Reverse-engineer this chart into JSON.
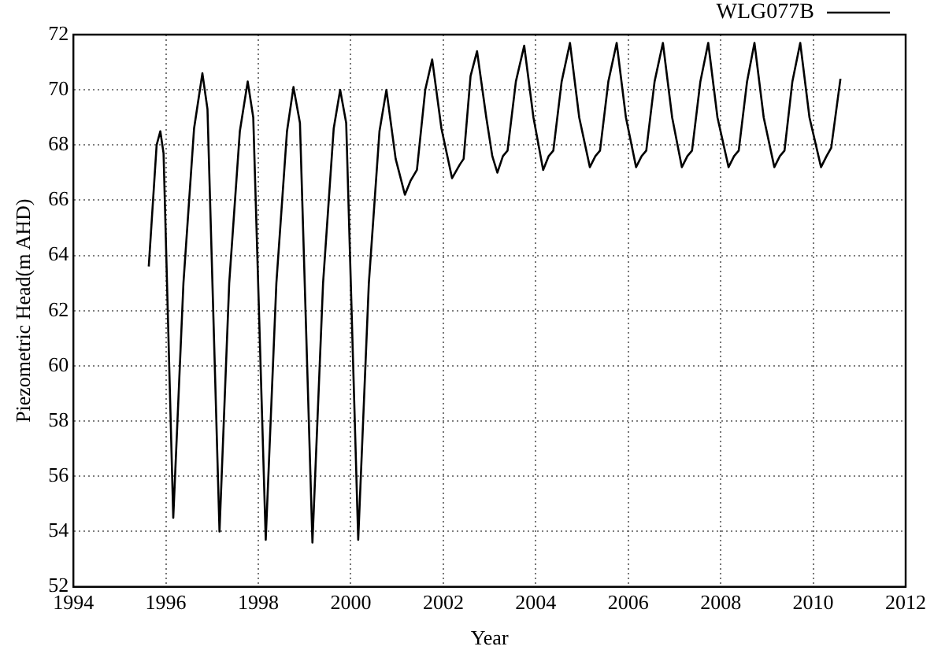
{
  "chart_data": {
    "type": "line",
    "xlabel": "Year",
    "ylabel": "Piezometric Head(m AHD)",
    "xlim": [
      1994,
      2012
    ],
    "xticks": [
      1994,
      1996,
      1998,
      2000,
      2002,
      2004,
      2006,
      2008,
      2010,
      2012
    ],
    "ylim": [
      52,
      72
    ],
    "yticks": [
      52,
      54,
      56,
      58,
      60,
      62,
      64,
      66,
      68,
      70,
      72
    ],
    "grid": true,
    "legend": "top right",
    "marker": "none",
    "line_style": "solid",
    "series": [
      {
        "name": "WLG077B",
        "color": "#000000",
        "x": [
          1995.63,
          1995.8,
          1995.88,
          1995.95,
          1996.16,
          1996.38,
          1996.61,
          1996.79,
          1996.9,
          1997.16,
          1997.37,
          1997.6,
          1997.77,
          1997.89,
          1998.16,
          1998.39,
          1998.62,
          1998.76,
          1998.9,
          1999.17,
          1999.4,
          1999.63,
          1999.77,
          1999.9,
          2000.16,
          2000.39,
          2000.62,
          2000.77,
          2000.97,
          2001.17,
          2001.29,
          2001.43,
          2001.61,
          2001.76,
          2001.96,
          2002.19,
          2002.36,
          2002.44,
          2002.59,
          2002.73,
          2002.93,
          2003.06,
          2003.17,
          2003.29,
          2003.39,
          2003.57,
          2003.75,
          2003.95,
          2004.16,
          2004.28,
          2004.38,
          2004.56,
          2004.74,
          2004.94,
          2005.17,
          2005.29,
          2005.39,
          2005.57,
          2005.75,
          2005.95,
          2006.17,
          2006.29,
          2006.39,
          2006.57,
          2006.75,
          2006.95,
          2007.16,
          2007.28,
          2007.38,
          2007.56,
          2007.73,
          2007.93,
          2008.17,
          2008.29,
          2008.39,
          2008.57,
          2008.73,
          2008.93,
          2009.16,
          2009.28,
          2009.38,
          2009.55,
          2009.72,
          2009.92,
          2010.17,
          2010.29,
          2010.39,
          2010.59
        ],
        "values": [
          63.6,
          68.0,
          68.5,
          67.7,
          54.5,
          63.0,
          68.6,
          70.6,
          69.3,
          54.0,
          63.0,
          68.5,
          70.3,
          69.0,
          53.7,
          63.0,
          68.5,
          70.1,
          68.8,
          53.6,
          63.0,
          68.6,
          70.0,
          68.8,
          53.7,
          63.0,
          68.5,
          70.0,
          67.5,
          66.2,
          66.7,
          67.1,
          70.0,
          71.1,
          68.6,
          66.8,
          67.3,
          67.5,
          70.5,
          71.4,
          69.0,
          67.6,
          67.0,
          67.6,
          67.8,
          70.3,
          71.6,
          69.0,
          67.1,
          67.6,
          67.8,
          70.3,
          71.7,
          69.0,
          67.2,
          67.6,
          67.8,
          70.3,
          71.7,
          69.0,
          67.2,
          67.6,
          67.8,
          70.3,
          71.7,
          69.0,
          67.2,
          67.6,
          67.8,
          70.3,
          71.7,
          69.0,
          67.2,
          67.6,
          67.8,
          70.3,
          71.7,
          69.0,
          67.2,
          67.6,
          67.8,
          70.3,
          71.7,
          69.0,
          67.2,
          67.6,
          67.9,
          70.4
        ]
      }
    ]
  }
}
